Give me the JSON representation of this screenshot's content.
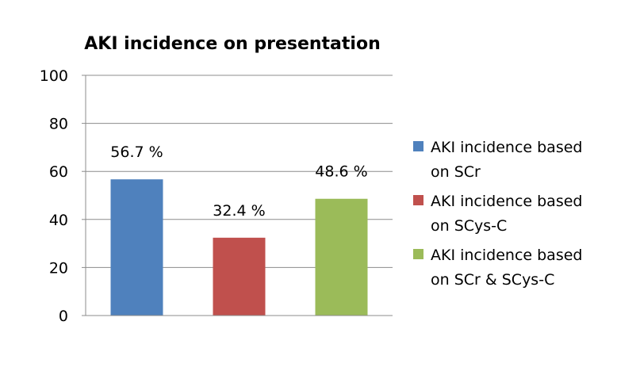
{
  "chart_data": {
    "type": "bar",
    "title": "AKI incidence on presentation",
    "xlabel": "",
    "ylabel": "",
    "ylim": [
      0,
      100
    ],
    "yticks": [
      0,
      20,
      40,
      60,
      80,
      100
    ],
    "grid": true,
    "legend_position": "right",
    "categories": [
      "AKI incidence based on SCr",
      "AKI incidence based on SCys-C",
      "AKI incidence based on SCr & SCys-C"
    ],
    "values": [
      56.7,
      32.4,
      48.6
    ],
    "data_labels": [
      "56.7 %",
      "32.4 %",
      "48.6 %"
    ],
    "colors": [
      "#4F81BD",
      "#C0504D",
      "#9BBB59"
    ],
    "legend": [
      {
        "line1": "AKI incidence based",
        "line2": "on SCr"
      },
      {
        "line1": "AKI incidence based",
        "line2": "on SCys-C"
      },
      {
        "line1": "AKI incidence based",
        "line2": "on SCr & SCys-C"
      }
    ]
  }
}
